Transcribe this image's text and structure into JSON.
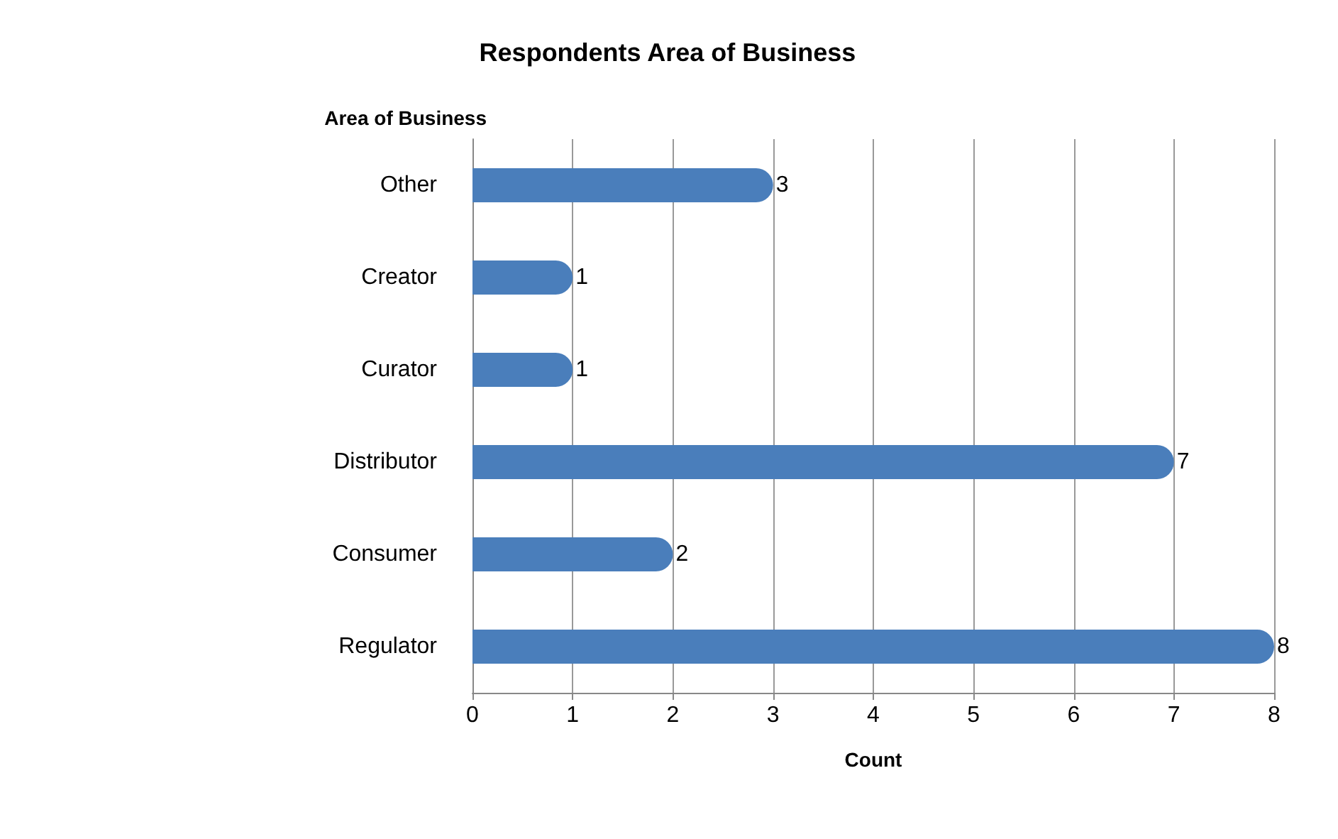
{
  "chart_data": {
    "type": "bar",
    "orientation": "horizontal",
    "title": "Respondents Area of Business",
    "xlabel": "Count",
    "ylabel": "Area of Business",
    "categories": [
      "Other",
      "Creator",
      "Curator",
      "Distributor",
      "Consumer",
      "Regulator"
    ],
    "values": [
      3,
      1,
      1,
      7,
      2,
      8
    ],
    "color": "#4a7ebb",
    "xlim": [
      0,
      8
    ],
    "xticks": [
      0,
      1,
      2,
      3,
      4,
      5,
      6,
      7,
      8
    ],
    "grid": "x",
    "data_labels": true
  }
}
